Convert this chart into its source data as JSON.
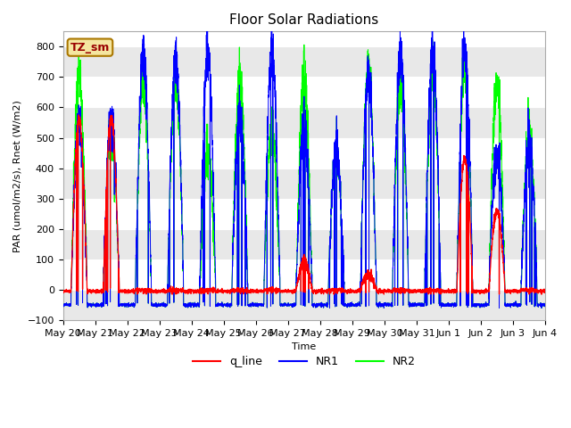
{
  "title": "Floor Solar Radiations",
  "xlabel": "Time",
  "ylabel": "PAR (umol/m2/s), Rnet (W/m2)",
  "ylim": [
    -100,
    850
  ],
  "yticks": [
    -100,
    0,
    100,
    200,
    300,
    400,
    500,
    600,
    700,
    800
  ],
  "colors": {
    "q_line": "red",
    "NR1": "blue",
    "NR2": "lime"
  },
  "tz_label": "TZ_sm",
  "bg_color": "#e8e8e8",
  "grid_color": "white",
  "n_days": 15,
  "points_per_day": 288,
  "day_peaks_NR1": [
    540,
    570,
    780,
    780,
    780,
    575,
    780,
    530,
    465,
    710,
    780,
    780,
    790,
    460,
    475
  ],
  "day_peaks_NR2": [
    700,
    540,
    690,
    720,
    450,
    700,
    520,
    700,
    460,
    730,
    680,
    720,
    720,
    700,
    510
  ],
  "day_peaks_q": [
    560,
    570,
    5,
    5,
    5,
    5,
    5,
    90,
    5,
    50,
    5,
    5,
    430,
    265,
    5
  ],
  "night_NR1": -50,
  "night_NR2": -50,
  "night_q": -5,
  "x_tick_labels": [
    "May 20",
    "May 21",
    "May 22",
    "May 23",
    "May 24",
    "May 25",
    "May 26",
    "May 27",
    "May 28",
    "May 29",
    "May 30",
    "May 31",
    "Jun 1",
    "Jun 2",
    "Jun 3",
    "Jun 4"
  ],
  "title_fontsize": 11,
  "label_fontsize": 8,
  "tick_fontsize": 8
}
